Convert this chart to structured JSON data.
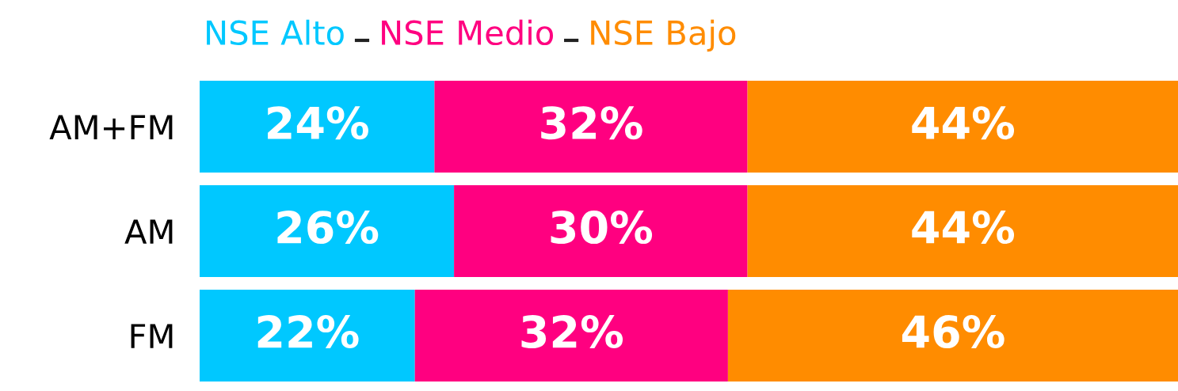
{
  "chart_data": {
    "type": "bar",
    "orientation": "horizontal",
    "stacked": true,
    "categories": [
      "AM+FM",
      "AM",
      "FM"
    ],
    "xlim": [
      0,
      100
    ],
    "tick_labels": "y",
    "legend": "top left",
    "grid": false,
    "series": [
      {
        "name": "NSE Alto",
        "color": "#00c8ff",
        "values": [
          24,
          26,
          22
        ],
        "value_labels": [
          "24%",
          "26%",
          "22%"
        ]
      },
      {
        "name": "NSE Medio",
        "color": "#ff0080",
        "values": [
          32,
          30,
          32
        ],
        "value_labels": [
          "32%",
          "30%",
          "32%"
        ]
      },
      {
        "name": "NSE Bajo",
        "color": "#ff8c00",
        "values": [
          44,
          44,
          46
        ],
        "value_labels": [
          "44%",
          "44%",
          "46%"
        ]
      }
    ]
  }
}
